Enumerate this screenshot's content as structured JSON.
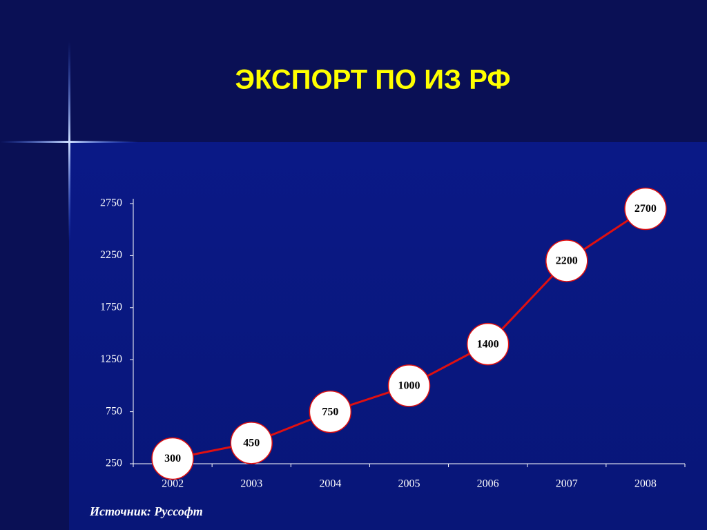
{
  "chart_data": {
    "type": "line",
    "title": "ЭКСПОРТ ПО ИЗ РФ",
    "categories": [
      "2002",
      "2003",
      "2004",
      "2005",
      "2006",
      "2007",
      "2008"
    ],
    "values": [
      300,
      450,
      750,
      1000,
      1400,
      2200,
      2700
    ],
    "color": "#e01010",
    "ylim": [
      250,
      2750
    ],
    "yticks": [
      250,
      750,
      1250,
      1750,
      2250,
      2750
    ],
    "grid": false,
    "source": "Источник: Руссофт"
  }
}
